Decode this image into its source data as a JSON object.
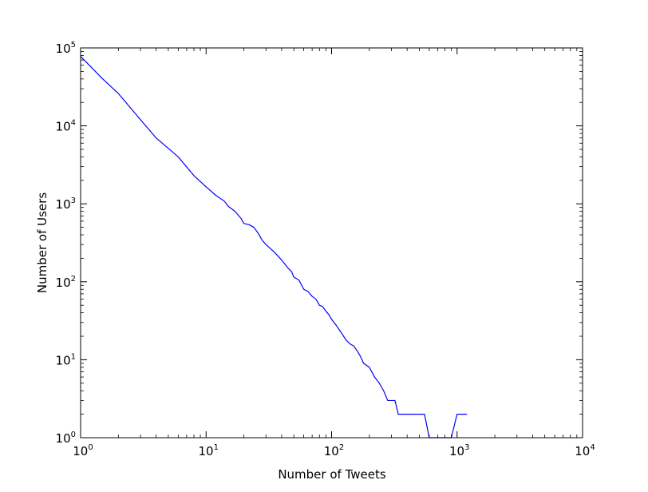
{
  "chart_data": {
    "type": "line",
    "title": "",
    "xlabel": "Number of Tweets",
    "ylabel": "Number of Users",
    "xscale": "log",
    "yscale": "log",
    "xlim": [
      1,
      10000
    ],
    "ylim": [
      1,
      100000
    ],
    "grid": false,
    "legend": "none",
    "line_color": "#0000ff",
    "x_tick_labels": [
      {
        "base": "10",
        "exp": "0"
      },
      {
        "base": "10",
        "exp": "1"
      },
      {
        "base": "10",
        "exp": "2"
      },
      {
        "base": "10",
        "exp": "3"
      },
      {
        "base": "10",
        "exp": "4"
      }
    ],
    "y_tick_labels": [
      {
        "base": "10",
        "exp": "0"
      },
      {
        "base": "10",
        "exp": "1"
      },
      {
        "base": "10",
        "exp": "2"
      },
      {
        "base": "10",
        "exp": "3"
      },
      {
        "base": "10",
        "exp": "4"
      },
      {
        "base": "10",
        "exp": "5"
      }
    ],
    "series": [
      {
        "x": [
          1,
          1.5,
          2,
          3,
          4,
          6,
          8,
          10,
          12,
          14,
          15,
          17,
          19,
          20,
          22,
          24,
          26,
          28,
          30,
          35,
          40,
          45,
          48,
          50,
          55,
          60,
          65,
          70,
          75,
          80,
          85,
          90,
          95,
          100,
          110,
          120,
          130,
          140,
          150,
          160,
          170,
          180,
          200,
          220,
          240,
          260,
          280,
          300,
          320,
          340,
          360,
          380,
          400,
          420,
          450,
          480,
          500,
          550,
          600,
          650,
          700,
          800,
          900,
          1000,
          1200
        ],
        "y": [
          78000,
          40000,
          26000,
          12000,
          7000,
          4000,
          2300,
          1650,
          1280,
          1080,
          930,
          800,
          650,
          560,
          540,
          500,
          420,
          340,
          300,
          240,
          190,
          150,
          135,
          115,
          105,
          80,
          75,
          65,
          60,
          50,
          48,
          42,
          38,
          33,
          27,
          22,
          18,
          16,
          15,
          13,
          11,
          9,
          8,
          6,
          5,
          4,
          3,
          3,
          3,
          2,
          2,
          2,
          2,
          2,
          2,
          2,
          2,
          2,
          1,
          1,
          1,
          1,
          1,
          2,
          2
        ]
      }
    ]
  }
}
